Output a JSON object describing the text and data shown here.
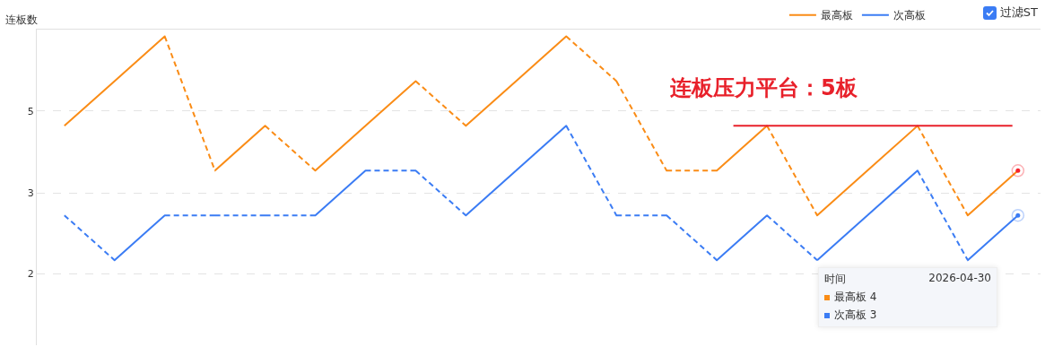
{
  "chart_data": {
    "type": "line",
    "ylabel": "连板数",
    "categories": [
      null,
      null,
      null,
      null,
      null,
      null,
      null,
      null,
      null,
      null,
      null,
      null,
      null,
      null,
      null,
      null,
      null,
      null,
      null,
      null
    ],
    "ylim": [
      0.1,
      7.15
    ],
    "yticks": [
      {
        "value": 1.7,
        "label": "2"
      },
      {
        "value": 3.5,
        "label": "3"
      },
      {
        "value": 5.33,
        "label": "5"
      }
    ],
    "tick_labels": "y",
    "grid": "y",
    "legend": "top right",
    "marker": "none",
    "series": [
      {
        "name": "最高板",
        "color": "#fa8c16",
        "values": [
          5,
          6,
          7,
          4,
          5,
          4,
          5,
          6,
          5,
          6,
          7,
          6,
          4,
          4,
          5,
          3,
          4,
          5,
          3,
          4
        ],
        "line_style": [
          "solid",
          "solid",
          "dashed",
          "solid",
          "dashed",
          "solid",
          "solid",
          "dashed",
          "solid",
          "solid",
          "dashed",
          "dashed",
          "dashed",
          "solid",
          "dashed",
          "solid",
          "solid",
          "dashed",
          "solid"
        ]
      },
      {
        "name": "次高板",
        "color": "#3b7cf4",
        "values": [
          3,
          2,
          3,
          3,
          3,
          3,
          4,
          4,
          3,
          4,
          5,
          3,
          3,
          2,
          3,
          2,
          3,
          4,
          2,
          3
        ],
        "line_style": [
          "dashed",
          "solid",
          "dashed",
          "dashed",
          "dashed",
          "solid",
          "dashed",
          "dashed",
          "solid",
          "solid",
          "dashed",
          "dashed",
          "dashed",
          "solid",
          "dashed",
          "solid",
          "solid",
          "dashed",
          "solid"
        ]
      },
      {
        "type": "scatter",
        "marker": "circle",
        "color": "#f5222d",
        "values": [
          null,
          null,
          null,
          null,
          null,
          null,
          null,
          null,
          null,
          null,
          null,
          null,
          null,
          null,
          null,
          null,
          null,
          null,
          null,
          4
        ]
      },
      {
        "type": "scatter",
        "marker": "circle",
        "color": "#3b7cf4",
        "values": [
          null,
          null,
          null,
          null,
          null,
          null,
          null,
          null,
          null,
          null,
          null,
          null,
          null,
          null,
          null,
          null,
          null,
          null,
          null,
          3
        ]
      }
    ],
    "ref_lines": [
      {
        "axis": "y",
        "value": 5,
        "label": "连板压力平台：5板",
        "color": "#e8202a"
      }
    ],
    "annotations": [
      "过滤ST",
      "时间",
      "2026-04-30",
      "最高板 4",
      "次高板 3"
    ]
  }
}
